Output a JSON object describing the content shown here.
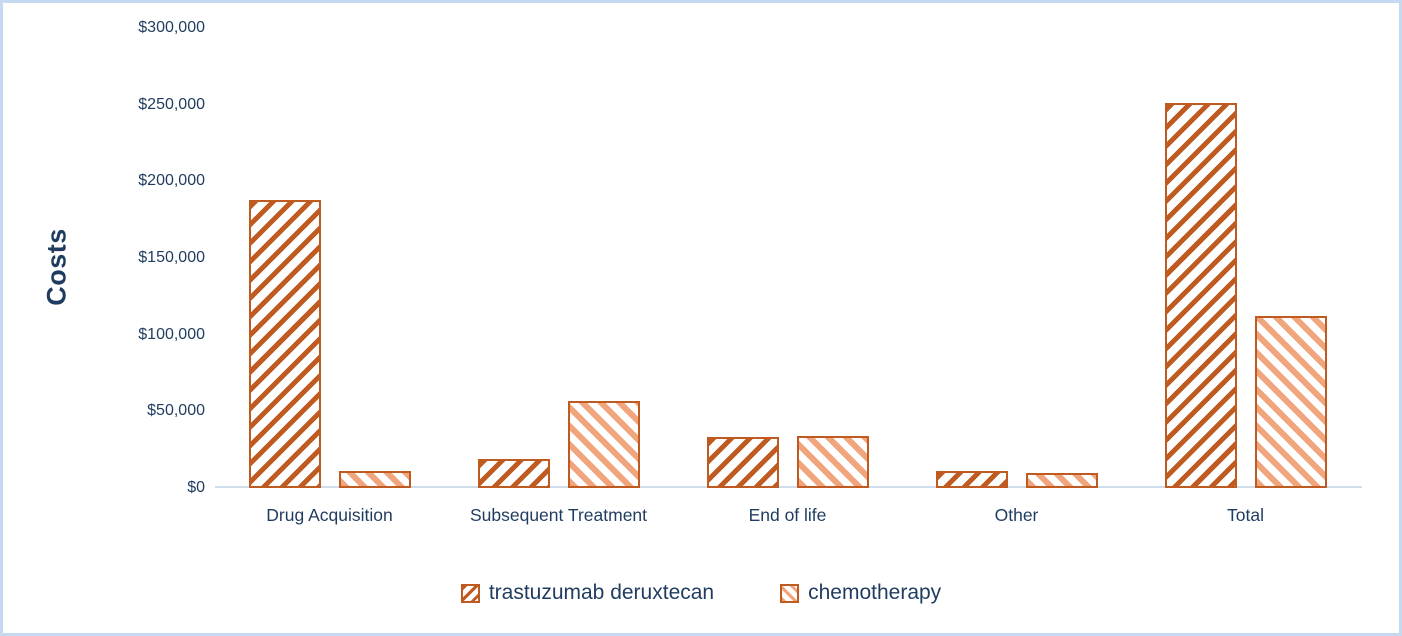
{
  "chart_data": {
    "type": "bar",
    "title": "",
    "xlabel": "",
    "ylabel": "Costs",
    "categories": [
      "Drug Acquisition",
      "Subsequent Treatment",
      "End of life",
      "Other",
      "Total"
    ],
    "series": [
      {
        "name": "trastuzumab deruxtecan",
        "hatch": "forward",
        "values": [
          188000,
          19000,
          33000,
          11000,
          251000
        ]
      },
      {
        "name": "chemotherapy",
        "hatch": "back",
        "values": [
          11000,
          57000,
          34000,
          10000,
          112000
        ]
      }
    ],
    "ylim": [
      0,
      300000
    ],
    "y_tick_labels": [
      "$300,000",
      "$250,000",
      "$200,000",
      "$150,000",
      "$100,000",
      "$50,000",
      "$0"
    ],
    "grid": false,
    "legend_position": "bottom"
  },
  "colors": {
    "series1_hatch": "#BF5B21",
    "series2_hatch": "#F1A57D",
    "bar_border": "#BF5B21",
    "text_navy": "#1F3C5F",
    "frame_border": "#C5D9F0",
    "axis_line": "#CFDDED"
  }
}
